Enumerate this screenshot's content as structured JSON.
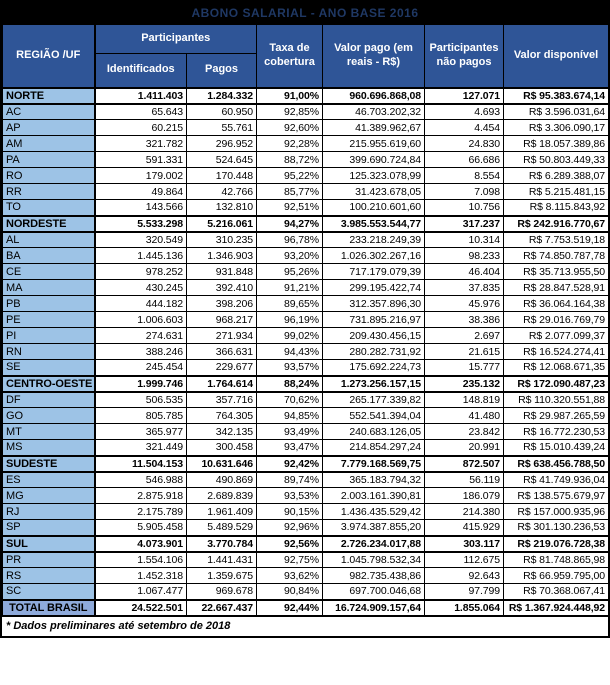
{
  "title": "ABONO SALARIAL - ANO BASE 2016",
  "footnote": "* Dados preliminares até setembro de 2018",
  "colors": {
    "header_blue": "#2F5597",
    "label_light_blue": "#9DC3E6",
    "total_label_blue": "#8EAADB",
    "title_text": "#1F3864",
    "title_background": "#000000"
  },
  "header": {
    "region": "REGIÃO /UF",
    "participantes_group": "Participantes",
    "identificados": "Identificados",
    "pagos": "Pagos",
    "taxa": "Taxa de cobertura",
    "valor_pago": "Valor pago (em reais - R$)",
    "nao_pagos": "Participantes não pagos",
    "valor_disponivel": "Valor disponível"
  },
  "rows": [
    {
      "type": "region",
      "label": "NORTE",
      "identificados": "1.411.403",
      "pagos": "1.284.332",
      "taxa": "91,00%",
      "valor_pago": "960.696.868,08",
      "nao_pagos": "127.071",
      "valor_disponivel": "R$ 95.383.674,14"
    },
    {
      "type": "state",
      "label": "AC",
      "identificados": "65.643",
      "pagos": "60.950",
      "taxa": "92,85%",
      "valor_pago": "46.703.202,32",
      "nao_pagos": "4.693",
      "valor_disponivel": "R$ 3.596.031,64"
    },
    {
      "type": "state",
      "label": "AP",
      "identificados": "60.215",
      "pagos": "55.761",
      "taxa": "92,60%",
      "valor_pago": "41.389.962,67",
      "nao_pagos": "4.454",
      "valor_disponivel": "R$ 3.306.090,17"
    },
    {
      "type": "state",
      "label": "AM",
      "identificados": "321.782",
      "pagos": "296.952",
      "taxa": "92,28%",
      "valor_pago": "215.955.619,60",
      "nao_pagos": "24.830",
      "valor_disponivel": "R$ 18.057.389,86"
    },
    {
      "type": "state",
      "label": "PA",
      "identificados": "591.331",
      "pagos": "524.645",
      "taxa": "88,72%",
      "valor_pago": "399.690.724,84",
      "nao_pagos": "66.686",
      "valor_disponivel": "R$ 50.803.449,33"
    },
    {
      "type": "state",
      "label": "RO",
      "identificados": "179.002",
      "pagos": "170.448",
      "taxa": "95,22%",
      "valor_pago": "125.323.078,99",
      "nao_pagos": "8.554",
      "valor_disponivel": "R$ 6.289.388,07"
    },
    {
      "type": "state",
      "label": "RR",
      "identificados": "49.864",
      "pagos": "42.766",
      "taxa": "85,77%",
      "valor_pago": "31.423.678,05",
      "nao_pagos": "7.098",
      "valor_disponivel": "R$ 5.215.481,15"
    },
    {
      "type": "state",
      "label": "TO",
      "identificados": "143.566",
      "pagos": "132.810",
      "taxa": "92,51%",
      "valor_pago": "100.210.601,60",
      "nao_pagos": "10.756",
      "valor_disponivel": "R$ 8.115.843,92"
    },
    {
      "type": "region",
      "label": "NORDESTE",
      "identificados": "5.533.298",
      "pagos": "5.216.061",
      "taxa": "94,27%",
      "valor_pago": "3.985.553.544,77",
      "nao_pagos": "317.237",
      "valor_disponivel": "R$ 242.916.770,67"
    },
    {
      "type": "state",
      "label": "AL",
      "identificados": "320.549",
      "pagos": "310.235",
      "taxa": "96,78%",
      "valor_pago": "233.218.249,39",
      "nao_pagos": "10.314",
      "valor_disponivel": "R$ 7.753.519,18"
    },
    {
      "type": "state",
      "label": "BA",
      "identificados": "1.445.136",
      "pagos": "1.346.903",
      "taxa": "93,20%",
      "valor_pago": "1.026.302.267,16",
      "nao_pagos": "98.233",
      "valor_disponivel": "R$ 74.850.787,78"
    },
    {
      "type": "state",
      "label": "CE",
      "identificados": "978.252",
      "pagos": "931.848",
      "taxa": "95,26%",
      "valor_pago": "717.179.079,39",
      "nao_pagos": "46.404",
      "valor_disponivel": "R$ 35.713.955,50"
    },
    {
      "type": "state",
      "label": "MA",
      "identificados": "430.245",
      "pagos": "392.410",
      "taxa": "91,21%",
      "valor_pago": "299.195.422,74",
      "nao_pagos": "37.835",
      "valor_disponivel": "R$ 28.847.528,91"
    },
    {
      "type": "state",
      "label": "PB",
      "identificados": "444.182",
      "pagos": "398.206",
      "taxa": "89,65%",
      "valor_pago": "312.357.896,30",
      "nao_pagos": "45.976",
      "valor_disponivel": "R$ 36.064.164,38"
    },
    {
      "type": "state",
      "label": "PE",
      "identificados": "1.006.603",
      "pagos": "968.217",
      "taxa": "96,19%",
      "valor_pago": "731.895.216,97",
      "nao_pagos": "38.386",
      "valor_disponivel": "R$ 29.016.769,79"
    },
    {
      "type": "state",
      "label": "PI",
      "identificados": "274.631",
      "pagos": "271.934",
      "taxa": "99,02%",
      "valor_pago": "209.430.456,15",
      "nao_pagos": "2.697",
      "valor_disponivel": "R$ 2.077.099,37"
    },
    {
      "type": "state",
      "label": "RN",
      "identificados": "388.246",
      "pagos": "366.631",
      "taxa": "94,43%",
      "valor_pago": "280.282.731,92",
      "nao_pagos": "21.615",
      "valor_disponivel": "R$ 16.524.274,41"
    },
    {
      "type": "state",
      "label": "SE",
      "identificados": "245.454",
      "pagos": "229.677",
      "taxa": "93,57%",
      "valor_pago": "175.692.224,73",
      "nao_pagos": "15.777",
      "valor_disponivel": "R$ 12.068.671,35"
    },
    {
      "type": "region",
      "label": "CENTRO-OESTE",
      "identificados": "1.999.746",
      "pagos": "1.764.614",
      "taxa": "88,24%",
      "valor_pago": "1.273.256.157,15",
      "nao_pagos": "235.132",
      "valor_disponivel": "R$ 172.090.487,23"
    },
    {
      "type": "state",
      "label": "DF",
      "identificados": "506.535",
      "pagos": "357.716",
      "taxa": "70,62%",
      "valor_pago": "265.177.339,82",
      "nao_pagos": "148.819",
      "valor_disponivel": "R$ 110.320.551,88"
    },
    {
      "type": "state",
      "label": "GO",
      "identificados": "805.785",
      "pagos": "764.305",
      "taxa": "94,85%",
      "valor_pago": "552.541.394,04",
      "nao_pagos": "41.480",
      "valor_disponivel": "R$ 29.987.265,59"
    },
    {
      "type": "state",
      "label": "MT",
      "identificados": "365.977",
      "pagos": "342.135",
      "taxa": "93,49%",
      "valor_pago": "240.683.126,05",
      "nao_pagos": "23.842",
      "valor_disponivel": "R$ 16.772.230,53"
    },
    {
      "type": "state",
      "label": "MS",
      "identificados": "321.449",
      "pagos": "300.458",
      "taxa": "93,47%",
      "valor_pago": "214.854.297,24",
      "nao_pagos": "20.991",
      "valor_disponivel": "R$ 15.010.439,24"
    },
    {
      "type": "region",
      "label": "SUDESTE",
      "identificados": "11.504.153",
      "pagos": "10.631.646",
      "taxa": "92,42%",
      "valor_pago": "7.779.168.569,75",
      "nao_pagos": "872.507",
      "valor_disponivel": "R$ 638.456.788,50"
    },
    {
      "type": "state",
      "label": "ES",
      "identificados": "546.988",
      "pagos": "490.869",
      "taxa": "89,74%",
      "valor_pago": "365.183.794,32",
      "nao_pagos": "56.119",
      "valor_disponivel": "R$ 41.749.936,04"
    },
    {
      "type": "state",
      "label": "MG",
      "identificados": "2.875.918",
      "pagos": "2.689.839",
      "taxa": "93,53%",
      "valor_pago": "2.003.161.390,81",
      "nao_pagos": "186.079",
      "valor_disponivel": "R$ 138.575.679,97"
    },
    {
      "type": "state",
      "label": "RJ",
      "identificados": "2.175.789",
      "pagos": "1.961.409",
      "taxa": "90,15%",
      "valor_pago": "1.436.435.529,42",
      "nao_pagos": "214.380",
      "valor_disponivel": "R$ 157.000.935,96"
    },
    {
      "type": "state",
      "label": "SP",
      "identificados": "5.905.458",
      "pagos": "5.489.529",
      "taxa": "92,96%",
      "valor_pago": "3.974.387.855,20",
      "nao_pagos": "415.929",
      "valor_disponivel": "R$ 301.130.236,53"
    },
    {
      "type": "region",
      "label": "SUL",
      "identificados": "4.073.901",
      "pagos": "3.770.784",
      "taxa": "92,56%",
      "valor_pago": "2.726.234.017,88",
      "nao_pagos": "303.117",
      "valor_disponivel": "R$ 219.076.728,38"
    },
    {
      "type": "state",
      "label": "PR",
      "identificados": "1.554.106",
      "pagos": "1.441.431",
      "taxa": "92,75%",
      "valor_pago": "1.045.798.532,34",
      "nao_pagos": "112.675",
      "valor_disponivel": "R$ 81.748.865,98"
    },
    {
      "type": "state",
      "label": "RS",
      "identificados": "1.452.318",
      "pagos": "1.359.675",
      "taxa": "93,62%",
      "valor_pago": "982.735.438,86",
      "nao_pagos": "92.643",
      "valor_disponivel": "R$ 66.959.795,00"
    },
    {
      "type": "state",
      "label": "SC",
      "identificados": "1.067.477",
      "pagos": "969.678",
      "taxa": "90,84%",
      "valor_pago": "697.700.046,68",
      "nao_pagos": "97.799",
      "valor_disponivel": "R$ 70.368.067,41"
    },
    {
      "type": "total",
      "label": "TOTAL BRASIL",
      "identificados": "24.522.501",
      "pagos": "22.667.437",
      "taxa": "92,44%",
      "valor_pago": "16.724.909.157,64",
      "nao_pagos": "1.855.064",
      "valor_disponivel": "R$ 1.367.924.448,92"
    }
  ]
}
